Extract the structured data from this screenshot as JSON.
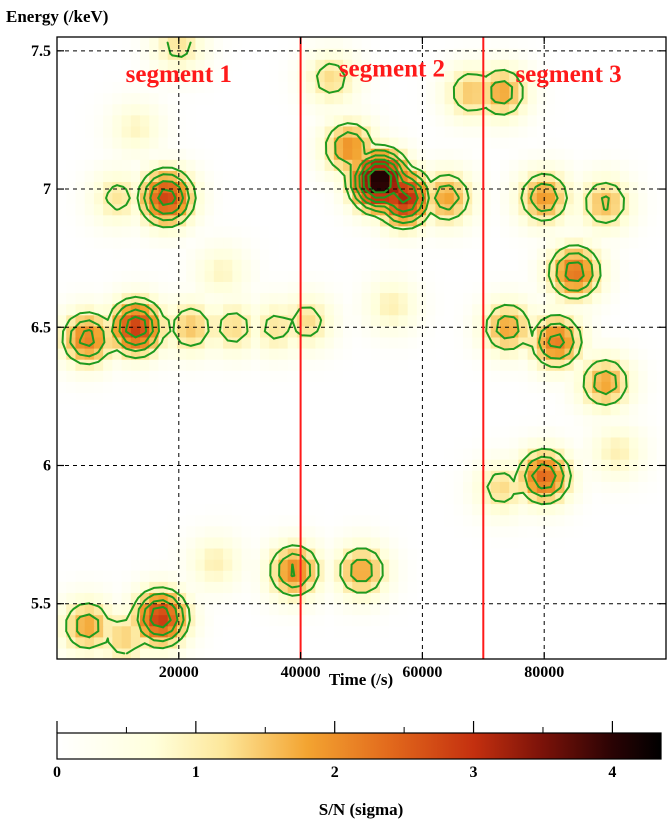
{
  "chart_data": [
    {
      "type": "heatmap",
      "ylabel": "Energy (/keV)",
      "xlabel": "Time (/s)",
      "xlim": [
        0,
        100000
      ],
      "ylim": [
        5.3,
        7.55
      ],
      "x_ticks": [
        {
          "value": 20000,
          "label": "20000"
        },
        {
          "value": 40000,
          "label": "40000"
        },
        {
          "value": 60000,
          "label": "60000"
        },
        {
          "value": 80000,
          "label": "80000"
        }
      ],
      "y_ticks": [
        {
          "value": 5.5,
          "label": "5.5"
        },
        {
          "value": 6,
          "label": "6"
        },
        {
          "value": 6.5,
          "label": "6.5"
        },
        {
          "value": 7,
          "label": "7"
        },
        {
          "value": 7.5,
          "label": "7.5"
        }
      ],
      "grid": true,
      "grid_style": "dashed",
      "segment_boundaries": [
        40000,
        70000
      ],
      "segment_labels": [
        {
          "text": "segment 1",
          "x": 20000,
          "y": 7.42
        },
        {
          "text": "segment 2",
          "x": 55000,
          "y": 7.44
        },
        {
          "text": "segment 3",
          "x": 84000,
          "y": 7.42
        }
      ],
      "colors": {
        "segment_line": "#ff1a1a",
        "contour": "#1f9a1f"
      },
      "contour_levels_sigma": [
        1,
        1.5,
        2,
        2.5,
        3,
        3.5
      ],
      "hotspots": [
        {
          "t": 18000,
          "e": 6.97,
          "peak": 2.8
        },
        {
          "t": 10000,
          "e": 6.97,
          "peak": 1.2
        },
        {
          "t": 13000,
          "e": 6.5,
          "peak": 2.9
        },
        {
          "t": 5000,
          "e": 6.46,
          "peak": 2.2
        },
        {
          "t": 22000,
          "e": 6.5,
          "peak": 1.5
        },
        {
          "t": 29000,
          "e": 6.5,
          "peak": 1.3
        },
        {
          "t": 36000,
          "e": 6.5,
          "peak": 1.2
        },
        {
          "t": 41000,
          "e": 6.52,
          "peak": 1.3
        },
        {
          "t": 53000,
          "e": 7.03,
          "peak": 4.3
        },
        {
          "t": 57000,
          "e": 6.97,
          "peak": 3.2
        },
        {
          "t": 48000,
          "e": 7.15,
          "peak": 2.0
        },
        {
          "t": 64000,
          "e": 6.97,
          "peak": 1.8
        },
        {
          "t": 68000,
          "e": 7.35,
          "peak": 1.5
        },
        {
          "t": 73000,
          "e": 7.35,
          "peak": 1.8
        },
        {
          "t": 45000,
          "e": 7.4,
          "peak": 1.3
        },
        {
          "t": 80000,
          "e": 6.97,
          "peak": 1.9
        },
        {
          "t": 90000,
          "e": 6.95,
          "peak": 1.6
        },
        {
          "t": 85000,
          "e": 6.7,
          "peak": 2.3
        },
        {
          "t": 74000,
          "e": 6.5,
          "peak": 1.8
        },
        {
          "t": 82000,
          "e": 6.45,
          "peak": 2.2
        },
        {
          "t": 90000,
          "e": 6.3,
          "peak": 1.8
        },
        {
          "t": 80000,
          "e": 5.96,
          "peak": 2.4
        },
        {
          "t": 73000,
          "e": 5.92,
          "peak": 1.3
        },
        {
          "t": 92000,
          "e": 6.05,
          "peak": 1.0
        },
        {
          "t": 17000,
          "e": 5.45,
          "peak": 2.9
        },
        {
          "t": 5000,
          "e": 5.42,
          "peak": 1.8
        },
        {
          "t": 11000,
          "e": 5.38,
          "peak": 1.4
        },
        {
          "t": 39000,
          "e": 5.62,
          "peak": 2.1
        },
        {
          "t": 50000,
          "e": 5.62,
          "peak": 1.8
        },
        {
          "t": 26000,
          "e": 5.65,
          "peak": 1.0
        },
        {
          "t": 20000,
          "e": 7.52,
          "peak": 1.2
        },
        {
          "t": 13000,
          "e": 7.22,
          "peak": 0.9
        },
        {
          "t": 27000,
          "e": 6.7,
          "peak": 0.9
        },
        {
          "t": 55000,
          "e": 6.58,
          "peak": 1.0
        }
      ]
    },
    {
      "type": "colorbar",
      "xlabel": "S/N (sigma)",
      "range": [
        0,
        4.35
      ],
      "ticks": [
        {
          "value": 0,
          "label": "0"
        },
        {
          "value": 1,
          "label": "1"
        },
        {
          "value": 2,
          "label": "2"
        },
        {
          "value": 3,
          "label": "3"
        },
        {
          "value": 4,
          "label": "4"
        }
      ],
      "stops": [
        {
          "v": 0.0,
          "color": "#ffffff"
        },
        {
          "v": 0.7,
          "color": "#ffffdc"
        },
        {
          "v": 1.2,
          "color": "#fde79a"
        },
        {
          "v": 1.8,
          "color": "#f3a431"
        },
        {
          "v": 2.4,
          "color": "#e2691c"
        },
        {
          "v": 3.0,
          "color": "#c4300f"
        },
        {
          "v": 3.5,
          "color": "#7a1209"
        },
        {
          "v": 4.0,
          "color": "#2a0304"
        },
        {
          "v": 4.35,
          "color": "#000000"
        }
      ]
    }
  ]
}
